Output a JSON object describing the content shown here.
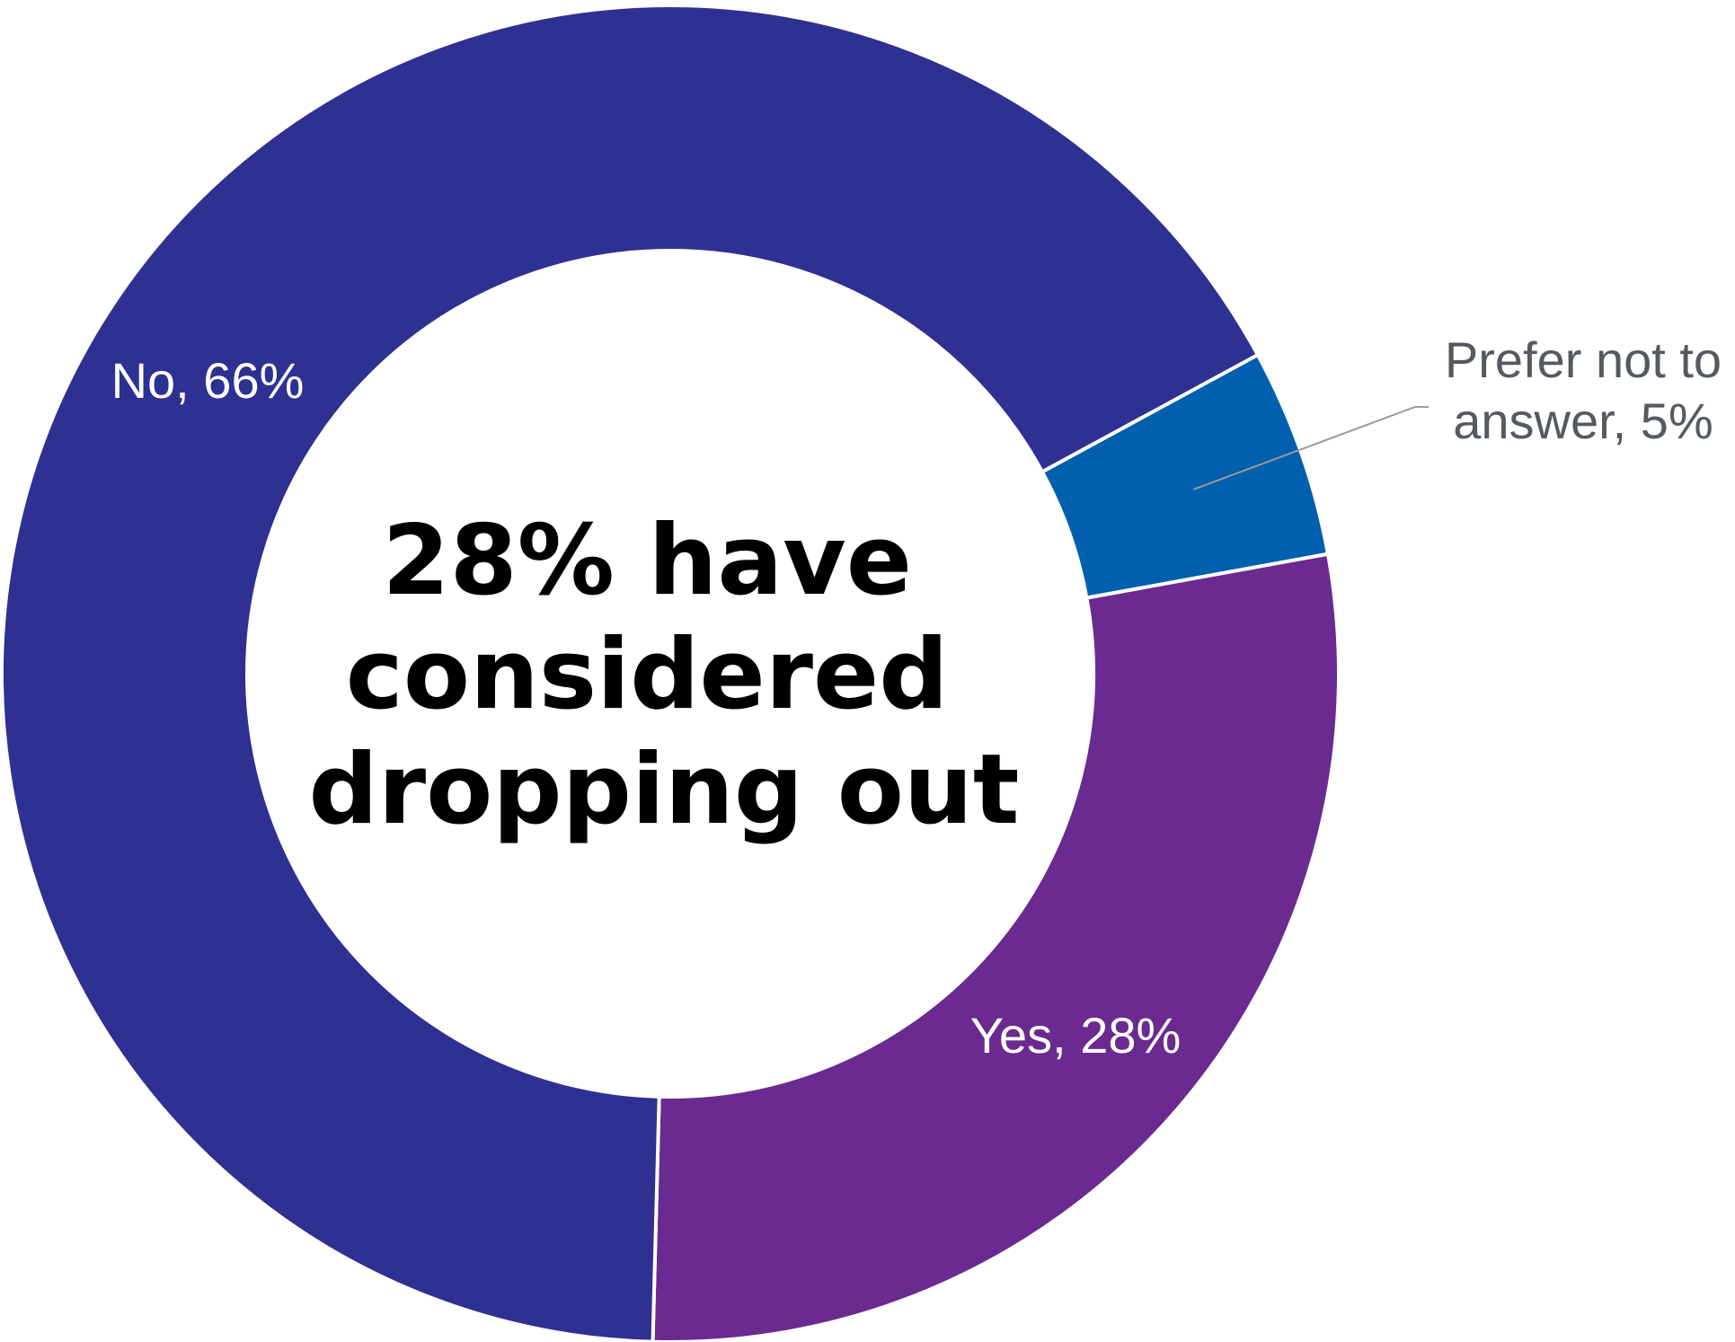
{
  "chart_data": {
    "type": "pie",
    "style": "donut",
    "center_text": [
      "28% have",
      "considered",
      "dropping out"
    ],
    "slices": [
      {
        "label": "Prefer not to answer",
        "value": 5,
        "display": [
          "Prefer not to",
          "answer, 5%"
        ],
        "color": "#0060ad",
        "label_position": "outside-right"
      },
      {
        "label": "Yes",
        "value": 28,
        "display": [
          "Yes, 28%"
        ],
        "color": "#6a2a8f",
        "label_position": "inside"
      },
      {
        "label": "No",
        "value": 66,
        "display": [
          "No, 66%"
        ],
        "color": "#2e3092",
        "label_position": "inside"
      }
    ]
  }
}
